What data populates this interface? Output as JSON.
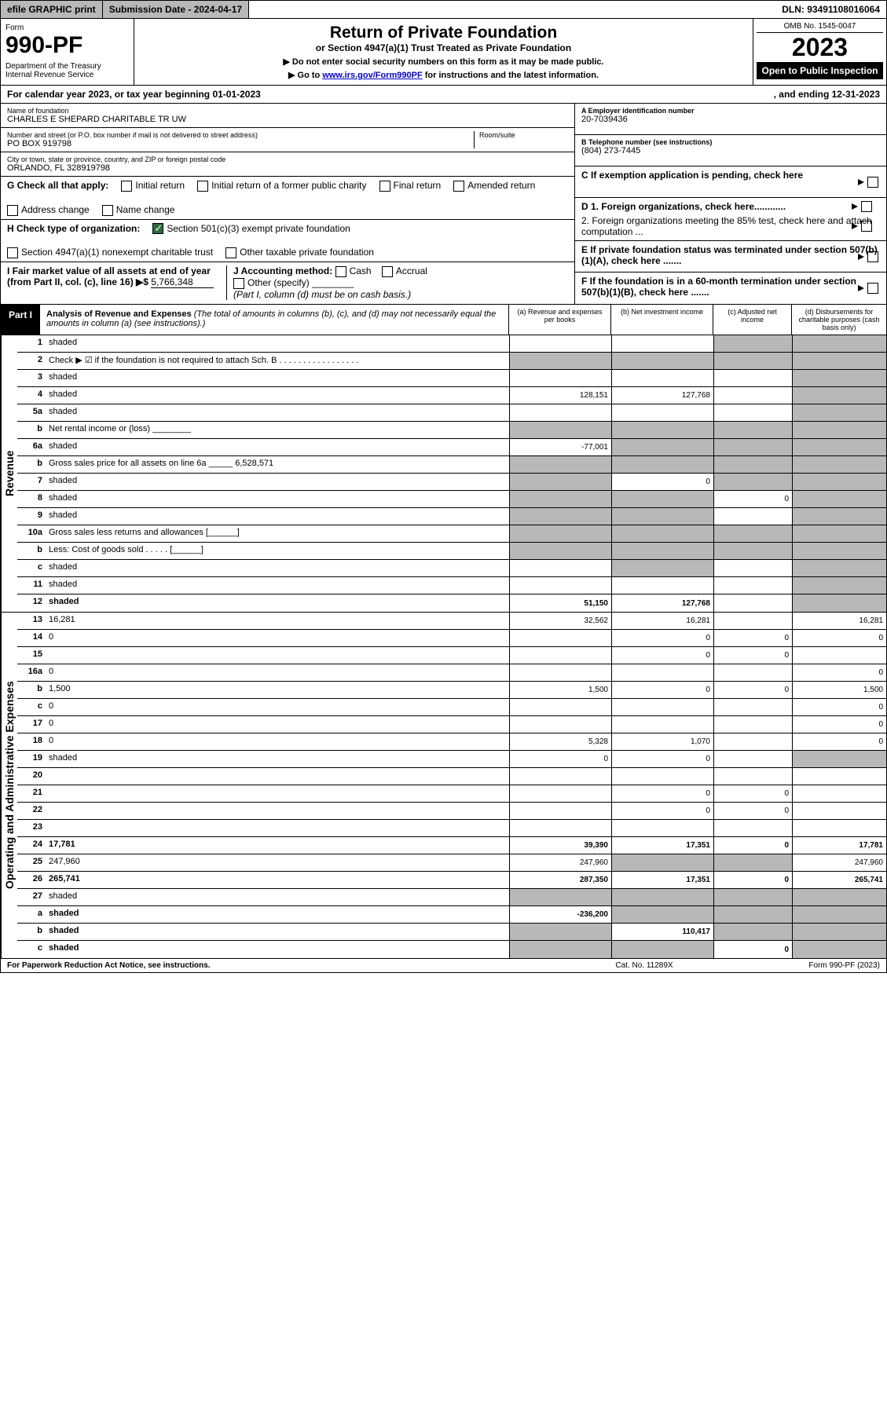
{
  "topbar": {
    "efile": "efile GRAPHIC print",
    "subdate_lbl": "Submission Date - 2024-04-17",
    "dln": "DLN: 93491108016064"
  },
  "header": {
    "form": "Form",
    "num": "990-PF",
    "dept": "Department of the Treasury\nInternal Revenue Service",
    "title": "Return of Private Foundation",
    "subtitle": "or Section 4947(a)(1) Trust Treated as Private Foundation",
    "note1": "▶ Do not enter social security numbers on this form as it may be made public.",
    "note2": "▶ Go to www.irs.gov/Form990PF for instructions and the latest information.",
    "omb": "OMB No. 1545-0047",
    "year": "2023",
    "open": "Open to Public Inspection"
  },
  "calyear": {
    "text": "For calendar year 2023, or tax year beginning 01-01-2023",
    "ending": ", and ending 12-31-2023"
  },
  "foundation": {
    "name_lbl": "Name of foundation",
    "name": "CHARLES E SHEPARD CHARITABLE TR UW",
    "addr_lbl": "Number and street (or P.O. box number if mail is not delivered to street address)",
    "addr": "PO BOX 919798",
    "room_lbl": "Room/suite",
    "city_lbl": "City or town, state or province, country, and ZIP or foreign postal code",
    "city": "ORLANDO, FL  328919798",
    "ein_lbl": "A Employer identification number",
    "ein": "20-7039436",
    "phone_lbl": "B Telephone number (see instructions)",
    "phone": "(804) 273-7445",
    "c_lbl": "C If exemption application is pending, check here",
    "d1_lbl": "D 1. Foreign organizations, check here............",
    "d2_lbl": "2. Foreign organizations meeting the 85% test, check here and attach computation ...",
    "e_lbl": "E  If private foundation status was terminated under section 507(b)(1)(A), check here .......",
    "f_lbl": "F  If the foundation is in a 60-month termination under section 507(b)(1)(B), check here .......",
    "g_lbl": "G Check all that apply:",
    "g_opts": [
      "Initial return",
      "Initial return of a former public charity",
      "Final return",
      "Amended return",
      "Address change",
      "Name change"
    ],
    "h_lbl": "H Check type of organization:",
    "h_501": "Section 501(c)(3) exempt private foundation",
    "h_4947": "Section 4947(a)(1) nonexempt charitable trust",
    "h_other": "Other taxable private foundation",
    "i_lbl": "I Fair market value of all assets at end of year (from Part II, col. (c), line 16) ▶$",
    "i_val": "5,766,348",
    "j_lbl": "J Accounting method:",
    "j_cash": "Cash",
    "j_accrual": "Accrual",
    "j_other": "Other (specify)",
    "j_note": "(Part I, column (d) must be on cash basis.)"
  },
  "part1": {
    "label": "Part I",
    "title": "Analysis of Revenue and Expenses",
    "note": "(The total of amounts in columns (b), (c), and (d) may not necessarily equal the amounts in column (a) (see instructions).)",
    "col_a": "(a)  Revenue and expenses per books",
    "col_b": "(b)  Net investment income",
    "col_c": "(c)  Adjusted net income",
    "col_d": "(d)  Disbursements for charitable purposes (cash basis only)"
  },
  "revenue_label": "Revenue",
  "expense_label": "Operating and Administrative Expenses",
  "rows": [
    {
      "n": "1",
      "d": "shaded",
      "a": "",
      "b": "",
      "c": "shaded"
    },
    {
      "n": "2",
      "d": "Check ▶ ☑ if the foundation is not required to attach Sch. B   . . . . . . . . . . . . . . . . .",
      "nocells": true
    },
    {
      "n": "3",
      "d": "shaded",
      "a": "",
      "b": "",
      "c": ""
    },
    {
      "n": "4",
      "d": "shaded",
      "a": "128,151",
      "b": "127,768",
      "c": ""
    },
    {
      "n": "5a",
      "d": "shaded",
      "a": "",
      "b": "",
      "c": ""
    },
    {
      "n": "b",
      "d": "Net rental income or (loss)  ________",
      "nocells": true
    },
    {
      "n": "6a",
      "d": "shaded",
      "a": "-77,001",
      "b": "shaded",
      "c": "shaded"
    },
    {
      "n": "b",
      "d": "Gross sales price for all assets on line 6a _____ 6,528,571",
      "nocells": true
    },
    {
      "n": "7",
      "d": "shaded",
      "a": "shaded",
      "b": "0",
      "c": "shaded"
    },
    {
      "n": "8",
      "d": "shaded",
      "a": "shaded",
      "b": "shaded",
      "c": "0"
    },
    {
      "n": "9",
      "d": "shaded",
      "a": "shaded",
      "b": "shaded",
      "c": ""
    },
    {
      "n": "10a",
      "d": "Gross sales less returns and allowances  [______]",
      "nocells": true
    },
    {
      "n": "b",
      "d": "Less: Cost of goods sold   . . . . .  [______]",
      "nocells": true
    },
    {
      "n": "c",
      "d": "shaded",
      "a": "",
      "b": "shaded",
      "c": ""
    },
    {
      "n": "11",
      "d": "shaded",
      "a": "",
      "b": "",
      "c": ""
    },
    {
      "n": "12",
      "d": "shaded",
      "a": "51,150",
      "b": "127,768",
      "c": "",
      "bold": true
    }
  ],
  "exp_rows": [
    {
      "n": "13",
      "d": "16,281",
      "a": "32,562",
      "b": "16,281",
      "c": ""
    },
    {
      "n": "14",
      "d": "0",
      "a": "",
      "b": "0",
      "c": "0"
    },
    {
      "n": "15",
      "d": "",
      "a": "",
      "b": "0",
      "c": "0"
    },
    {
      "n": "16a",
      "d": "0",
      "a": "",
      "b": "",
      "c": ""
    },
    {
      "n": "b",
      "d": "1,500",
      "a": "1,500",
      "b": "0",
      "c": "0"
    },
    {
      "n": "c",
      "d": "0",
      "a": "",
      "b": "",
      "c": ""
    },
    {
      "n": "17",
      "d": "0",
      "a": "",
      "b": "",
      "c": ""
    },
    {
      "n": "18",
      "d": "0",
      "a": "5,328",
      "b": "1,070",
      "c": ""
    },
    {
      "n": "19",
      "d": "shaded",
      "a": "0",
      "b": "0",
      "c": ""
    },
    {
      "n": "20",
      "d": "",
      "a": "",
      "b": "",
      "c": ""
    },
    {
      "n": "21",
      "d": "",
      "a": "",
      "b": "0",
      "c": "0"
    },
    {
      "n": "22",
      "d": "",
      "a": "",
      "b": "0",
      "c": "0"
    },
    {
      "n": "23",
      "d": "",
      "a": "",
      "b": "",
      "c": ""
    },
    {
      "n": "24",
      "d": "17,781",
      "a": "39,390",
      "b": "17,351",
      "c": "0",
      "bold": true
    },
    {
      "n": "25",
      "d": "247,960",
      "a": "247,960",
      "b": "shaded",
      "c": "shaded"
    },
    {
      "n": "26",
      "d": "265,741",
      "a": "287,350",
      "b": "17,351",
      "c": "0",
      "bold": true
    },
    {
      "n": "27",
      "d": "shaded",
      "a": "shaded",
      "b": "shaded",
      "c": "shaded"
    },
    {
      "n": "a",
      "d": "shaded",
      "a": "-236,200",
      "b": "shaded",
      "c": "shaded",
      "bold": true
    },
    {
      "n": "b",
      "d": "shaded",
      "a": "shaded",
      "b": "110,417",
      "c": "shaded",
      "bold": true
    },
    {
      "n": "c",
      "d": "shaded",
      "a": "shaded",
      "b": "shaded",
      "c": "0",
      "bold": true
    }
  ],
  "footer": {
    "l": "For Paperwork Reduction Act Notice, see instructions.",
    "m": "Cat. No. 11289X",
    "r": "Form 990-PF (2023)"
  }
}
